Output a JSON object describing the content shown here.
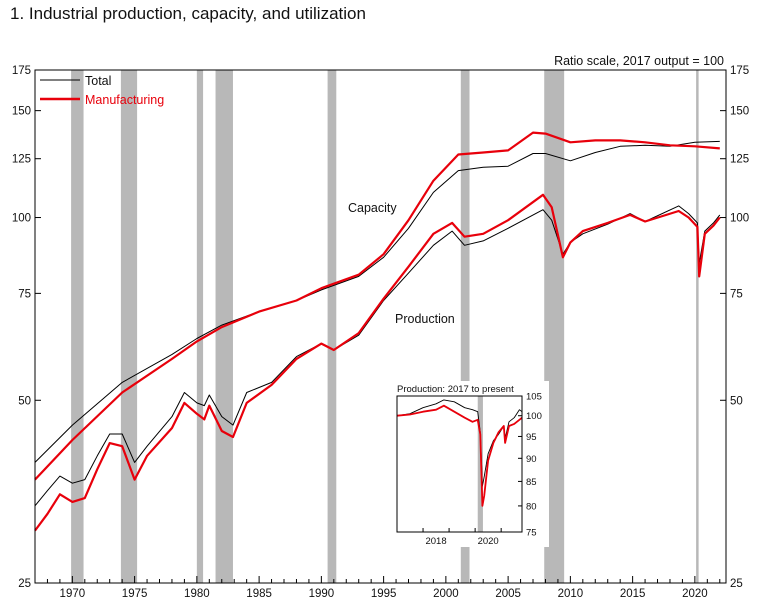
{
  "page_title": "1.  Industrial production, capacity, and utilization",
  "chart_data": {
    "type": "line",
    "title": "1.  Industrial production, capacity, and utilization",
    "scale_note": "Ratio scale, 2017 output = 100",
    "y_scale": "log",
    "ylim": [
      25,
      175
    ],
    "xlim": [
      1967,
      2022.5
    ],
    "y_ticks": [
      25,
      50,
      75,
      100,
      125,
      150,
      175
    ],
    "x_ticks": [
      1970,
      1975,
      1980,
      1985,
      1990,
      1995,
      2000,
      2005,
      2010,
      2015,
      2020
    ],
    "recessions": [
      [
        1969.9,
        1970.9
      ],
      [
        1973.9,
        1975.2
      ],
      [
        1980.0,
        1980.5
      ],
      [
        1981.5,
        1982.9
      ],
      [
        1990.5,
        1991.2
      ],
      [
        2001.2,
        2001.9
      ],
      [
        2007.9,
        2009.5
      ],
      [
        2020.1,
        2020.3
      ]
    ],
    "annotations": {
      "capacity": "Capacity",
      "production": "Production"
    },
    "legend": {
      "placement": "top-left",
      "entries": [
        "Total",
        "Manufacturing"
      ]
    },
    "colors": {
      "total": "#000000",
      "manufacturing": "#e8000b",
      "recession": "#b8b8b8"
    },
    "series": [
      {
        "name": "Total",
        "kind": "capacity",
        "x": [
          1967,
          1970,
          1974,
          1978,
          1980,
          1982,
          1985,
          1988,
          1990,
          1993,
          1995,
          1997,
          1999,
          2001,
          2003,
          2005,
          2007,
          2008,
          2010,
          2012,
          2014,
          2016,
          2018,
          2020,
          2022
        ],
        "y": [
          39.5,
          45.5,
          53.5,
          59.5,
          63.2,
          66.5,
          70,
          73,
          76,
          80,
          86,
          96,
          110,
          119.5,
          121,
          121.5,
          127.5,
          127.5,
          124,
          128,
          131,
          131.5,
          131,
          133,
          133.5
        ]
      },
      {
        "name": "Manufacturing",
        "kind": "capacity",
        "x": [
          1967,
          1970,
          1974,
          1978,
          1980,
          1982,
          1985,
          1988,
          1990,
          1993,
          1995,
          1997,
          1999,
          2001,
          2003,
          2005,
          2007,
          2008,
          2010,
          2012,
          2014,
          2016,
          2018,
          2020,
          2022
        ],
        "y": [
          37,
          43,
          51.5,
          58.5,
          62.5,
          66,
          70,
          73,
          76.5,
          80.5,
          87,
          99,
          115,
          127,
          128,
          129,
          138,
          137.5,
          133,
          134,
          134,
          133,
          131.5,
          131,
          130
        ]
      },
      {
        "name": "Total",
        "kind": "production",
        "x": [
          1967,
          1968,
          1969,
          1970,
          1971,
          1972,
          1973,
          1974,
          1975,
          1976,
          1978,
          1979,
          1980,
          1980.6,
          1981,
          1982,
          1982.9,
          1984,
          1986,
          1988,
          1990,
          1991,
          1993,
          1995,
          1997,
          1999,
          2000.5,
          2001.5,
          2003,
          2005,
          2007.8,
          2008.5,
          2009.4,
          2010,
          2011,
          2013,
          2014.8,
          2016,
          2018.7,
          2019.5,
          2020.2,
          2020.35,
          2020.8,
          2021.5,
          2022
        ],
        "y": [
          33.5,
          35.5,
          37.5,
          36.5,
          37,
          40.5,
          44,
          44,
          39.5,
          42,
          47,
          51.5,
          49.5,
          49,
          51,
          47,
          45.5,
          51.5,
          53.5,
          59,
          62,
          60.5,
          64,
          73,
          81,
          90,
          95,
          90,
          91.5,
          96,
          103,
          99,
          87,
          91,
          94,
          97.5,
          101.5,
          98.5,
          104.5,
          101.5,
          98,
          84,
          95,
          98,
          101
        ]
      },
      {
        "name": "Manufacturing",
        "kind": "production",
        "x": [
          1967,
          1968,
          1969,
          1970,
          1971,
          1972,
          1973,
          1974,
          1975,
          1976,
          1978,
          1979,
          1980,
          1980.6,
          1981,
          1982,
          1982.9,
          1984,
          1986,
          1988,
          1990,
          1991,
          1993,
          1995,
          1997,
          1999,
          2000.5,
          2001.5,
          2003,
          2005,
          2007.8,
          2008.5,
          2009.4,
          2010,
          2011,
          2013,
          2014.8,
          2016,
          2018.7,
          2019.5,
          2020.2,
          2020.35,
          2020.8,
          2021.5,
          2022
        ],
        "y": [
          30.5,
          32.5,
          35,
          34,
          34.5,
          38.5,
          42.5,
          42,
          37,
          40.5,
          45,
          49.5,
          47.5,
          46.5,
          49,
          44.5,
          43.5,
          49.5,
          53,
          58.5,
          62,
          60.5,
          64.5,
          73.5,
          83,
          94,
          98,
          93,
          94,
          99,
          109,
          104,
          86,
          91,
          95,
          98,
          101,
          98.5,
          102.5,
          100,
          96.5,
          80,
          94,
          97,
          100
        ]
      }
    ],
    "inset": {
      "title": "Production: 2017 to present",
      "y_scale": "log",
      "ylim": [
        75,
        105
      ],
      "y_ticks": [
        75,
        80,
        85,
        90,
        95,
        100,
        105
      ],
      "xlim": [
        2017,
        2021.8
      ],
      "x_ticks": [
        2018,
        2020
      ],
      "recessions": [
        [
          2020.1,
          2020.3
        ]
      ],
      "series": [
        {
          "name": "Total",
          "x": [
            2017,
            2017.5,
            2018,
            2018.5,
            2018.8,
            2019.2,
            2019.6,
            2019.9,
            2020.1,
            2020.2,
            2020.28,
            2020.35,
            2020.5,
            2020.7,
            2020.9,
            2021.1,
            2021.15,
            2021.3,
            2021.5,
            2021.7,
            2021.8
          ],
          "y": [
            100,
            100.5,
            102,
            103,
            104,
            103.5,
            102,
            101.5,
            101,
            96,
            84,
            86,
            91,
            94,
            95.5,
            97.5,
            94.5,
            98.5,
            99.5,
            101.5,
            101
          ]
        },
        {
          "name": "Manufacturing",
          "x": [
            2017,
            2017.5,
            2018,
            2018.5,
            2018.8,
            2019.2,
            2019.6,
            2019.9,
            2020.1,
            2020.2,
            2020.28,
            2020.35,
            2020.5,
            2020.7,
            2020.9,
            2021.1,
            2021.15,
            2021.3,
            2021.5,
            2021.7,
            2021.8
          ],
          "y": [
            100,
            100.3,
            101,
            101.5,
            102.5,
            101,
            99.5,
            98.5,
            99,
            95.5,
            80,
            82,
            89.5,
            93.5,
            96,
            97.5,
            93.5,
            97.5,
            98,
            99,
            99.5
          ]
        }
      ]
    }
  }
}
